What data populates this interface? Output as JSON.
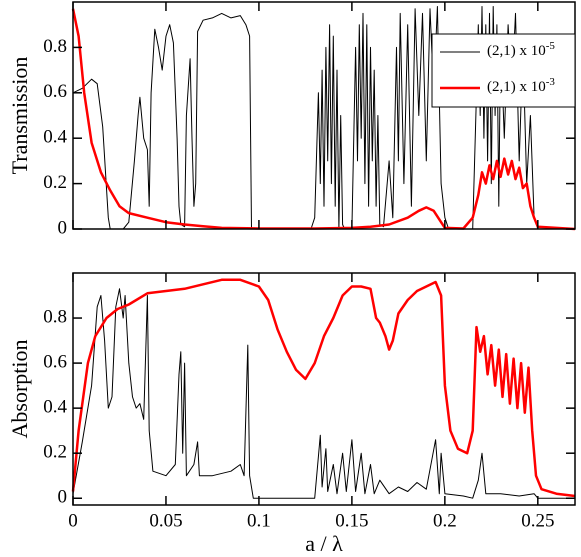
{
  "chart_data": [
    {
      "type": "line",
      "ylabel": "Transmission",
      "xlim": [
        0,
        0.27
      ],
      "ylim": [
        0,
        1
      ],
      "xticks": [
        0,
        0.05,
        0.1,
        0.15,
        0.2,
        0.25
      ],
      "yticks": [
        0,
        0.2,
        0.4,
        0.6,
        0.8
      ],
      "legend": "upper right",
      "series": [
        {
          "name": "(2,1) x 10",
          "exponent": "-5",
          "color": "#000000",
          "x": [
            0,
            0.005,
            0.01,
            0.013,
            0.016,
            0.019,
            0.02,
            0.027,
            0.03,
            0.033,
            0.035,
            0.036,
            0.038,
            0.04,
            0.041,
            0.042,
            0.044,
            0.046,
            0.048,
            0.05,
            0.052,
            0.054,
            0.056,
            0.057,
            0.058,
            0.06,
            0.061,
            0.063,
            0.064,
            0.065,
            0.066,
            0.067,
            0.07,
            0.075,
            0.08,
            0.085,
            0.09,
            0.093,
            0.095,
            0.096,
            0.1,
            0.128,
            0.13,
            0.132,
            0.133,
            0.134,
            0.135,
            0.136,
            0.137,
            0.138,
            0.139,
            0.14,
            0.141,
            0.142,
            0.143,
            0.144,
            0.145,
            0.146,
            0.15,
            0.152,
            0.153,
            0.154,
            0.155,
            0.156,
            0.157,
            0.158,
            0.159,
            0.16,
            0.161,
            0.162,
            0.163,
            0.164,
            0.165,
            0.167,
            0.17,
            0.172,
            0.174,
            0.175,
            0.176,
            0.178,
            0.18,
            0.182,
            0.184,
            0.186,
            0.188,
            0.19,
            0.192,
            0.194,
            0.196,
            0.198,
            0.2,
            0.202,
            0.215,
            0.217,
            0.218,
            0.219,
            0.22,
            0.221,
            0.222,
            0.223,
            0.224,
            0.225,
            0.226,
            0.227,
            0.228,
            0.229,
            0.23,
            0.232,
            0.234,
            0.236,
            0.238,
            0.24,
            0.242,
            0.244,
            0.246,
            0.248,
            0.25,
            0.27
          ],
          "values": [
            0.6,
            0.62,
            0.66,
            0.64,
            0.45,
            0.05,
            0,
            0,
            0.03,
            0.3,
            0.5,
            0.58,
            0.4,
            0.35,
            0.1,
            0.6,
            0.88,
            0.8,
            0.7,
            0.85,
            0.9,
            0.82,
            0.4,
            0.1,
            0.02,
            0.01,
            0.5,
            0.75,
            0.4,
            0.1,
            0.2,
            0.87,
            0.92,
            0.93,
            0.95,
            0.93,
            0.94,
            0.9,
            0.85,
            0,
            0,
            0,
            0.05,
            0.6,
            0.2,
            0.7,
            0.1,
            0.8,
            0.3,
            0.9,
            0.2,
            0.85,
            0.1,
            0.7,
            0,
            0.5,
            0.02,
            0,
            0,
            0.8,
            0.3,
            0.9,
            0.4,
            0.95,
            0.2,
            0.9,
            0.1,
            0.8,
            0.3,
            0.7,
            0.1,
            0.5,
            0.02,
            0.01,
            0.3,
            0.05,
            0.8,
            0.3,
            0.95,
            0.2,
            0.9,
            0.1,
            0.97,
            0.5,
            0.95,
            0.3,
            0.97,
            0.6,
            0.98,
            0.2,
            0.05,
            0,
            0,
            0.6,
            0.9,
            0.5,
            0.98,
            0.4,
            0.9,
            0.3,
            0.95,
            0.2,
            0.98,
            0.5,
            0.9,
            0.1,
            0.85,
            0.4,
            0.9,
            0.6,
            0.95,
            0.3,
            0.8,
            0.2,
            0.5,
            0.05,
            0,
            0
          ]
        },
        {
          "name": "(2,1) x 10",
          "exponent": "-3",
          "color": "#ff0000",
          "x": [
            0,
            0.003,
            0.006,
            0.01,
            0.015,
            0.02,
            0.025,
            0.03,
            0.04,
            0.05,
            0.06,
            0.07,
            0.08,
            0.1,
            0.13,
            0.15,
            0.16,
            0.17,
            0.18,
            0.186,
            0.19,
            0.194,
            0.198,
            0.2,
            0.21,
            0.215,
            0.218,
            0.22,
            0.222,
            0.224,
            0.226,
            0.228,
            0.23,
            0.232,
            0.234,
            0.236,
            0.238,
            0.24,
            0.242,
            0.244,
            0.246,
            0.248,
            0.25,
            0.27
          ],
          "values": [
            0.97,
            0.85,
            0.6,
            0.38,
            0.25,
            0.17,
            0.1,
            0.07,
            0.05,
            0.03,
            0.02,
            0.012,
            0.005,
            0.002,
            0.002,
            0.005,
            0.01,
            0.02,
            0.05,
            0.08,
            0.095,
            0.08,
            0.03,
            0.005,
            0.002,
            0.05,
            0.15,
            0.25,
            0.2,
            0.28,
            0.22,
            0.3,
            0.23,
            0.31,
            0.24,
            0.3,
            0.22,
            0.27,
            0.18,
            0.2,
            0.1,
            0.05,
            0.01,
            0
          ]
        }
      ]
    },
    {
      "type": "line",
      "ylabel": "Absorption",
      "xlabel": "a / λ",
      "xlim": [
        0,
        0.27
      ],
      "ylim": [
        -0.03,
        1
      ],
      "xticks": [
        0,
        0.05,
        0.1,
        0.15,
        0.2,
        0.25
      ],
      "yticks": [
        0,
        0.2,
        0.4,
        0.6,
        0.8
      ],
      "series": [
        {
          "color": "#000000",
          "x": [
            0,
            0.005,
            0.01,
            0.013,
            0.015,
            0.017,
            0.019,
            0.021,
            0.023,
            0.025,
            0.027,
            0.028,
            0.03,
            0.032,
            0.034,
            0.036,
            0.038,
            0.04,
            0.041,
            0.043,
            0.05,
            0.055,
            0.057,
            0.058,
            0.059,
            0.06,
            0.061,
            0.065,
            0.067,
            0.068,
            0.075,
            0.085,
            0.09,
            0.092,
            0.094,
            0.095,
            0.097,
            0.13,
            0.133,
            0.134,
            0.136,
            0.137,
            0.14,
            0.142,
            0.145,
            0.147,
            0.15,
            0.152,
            0.155,
            0.157,
            0.16,
            0.162,
            0.165,
            0.17,
            0.175,
            0.18,
            0.185,
            0.19,
            0.195,
            0.197,
            0.198,
            0.2,
            0.21,
            0.215,
            0.218,
            0.22,
            0.222,
            0.23,
            0.24,
            0.248,
            0.25,
            0.27
          ],
          "values": [
            0.02,
            0.25,
            0.5,
            0.85,
            0.9,
            0.7,
            0.4,
            0.45,
            0.85,
            0.93,
            0.8,
            0.9,
            0.6,
            0.45,
            0.4,
            0.42,
            0.35,
            0.9,
            0.3,
            0.12,
            0.1,
            0.15,
            0.55,
            0.65,
            0.2,
            0.6,
            0.1,
            0.15,
            0.25,
            0.1,
            0.1,
            0.12,
            0.15,
            0.1,
            0.68,
            0.1,
            0,
            0,
            0.28,
            0.05,
            0.22,
            0.03,
            0.15,
            0.02,
            0.2,
            0.03,
            0.26,
            0.03,
            0.2,
            0.02,
            0.15,
            0.02,
            0.08,
            0.02,
            0.05,
            0.03,
            0.07,
            0.04,
            0.26,
            0.02,
            0.2,
            0.02,
            0.01,
            0,
            0.08,
            0.2,
            0.02,
            0.02,
            0.01,
            0.02,
            0,
            0
          ]
        },
        {
          "color": "#ff0000",
          "x": [
            0,
            0.003,
            0.008,
            0.012,
            0.018,
            0.024,
            0.03,
            0.04,
            0.05,
            0.06,
            0.07,
            0.08,
            0.09,
            0.1,
            0.105,
            0.11,
            0.115,
            0.12,
            0.125,
            0.13,
            0.135,
            0.14,
            0.145,
            0.15,
            0.155,
            0.16,
            0.163,
            0.165,
            0.168,
            0.17,
            0.172,
            0.175,
            0.18,
            0.185,
            0.19,
            0.195,
            0.198,
            0.2,
            0.203,
            0.207,
            0.212,
            0.215,
            0.217,
            0.219,
            0.221,
            0.223,
            0.225,
            0.227,
            0.229,
            0.231,
            0.233,
            0.235,
            0.237,
            0.239,
            0.241,
            0.243,
            0.245,
            0.247,
            0.249,
            0.252,
            0.26,
            0.27
          ],
          "values": [
            0.03,
            0.3,
            0.6,
            0.72,
            0.8,
            0.84,
            0.86,
            0.91,
            0.92,
            0.93,
            0.95,
            0.97,
            0.97,
            0.94,
            0.88,
            0.75,
            0.65,
            0.57,
            0.53,
            0.6,
            0.72,
            0.8,
            0.9,
            0.94,
            0.94,
            0.93,
            0.8,
            0.78,
            0.72,
            0.66,
            0.7,
            0.82,
            0.88,
            0.92,
            0.94,
            0.96,
            0.9,
            0.5,
            0.3,
            0.22,
            0.2,
            0.3,
            0.76,
            0.65,
            0.72,
            0.55,
            0.68,
            0.5,
            0.66,
            0.45,
            0.64,
            0.42,
            0.62,
            0.4,
            0.6,
            0.38,
            0.58,
            0.3,
            0.1,
            0.04,
            0.02,
            0.01
          ]
        }
      ]
    }
  ]
}
